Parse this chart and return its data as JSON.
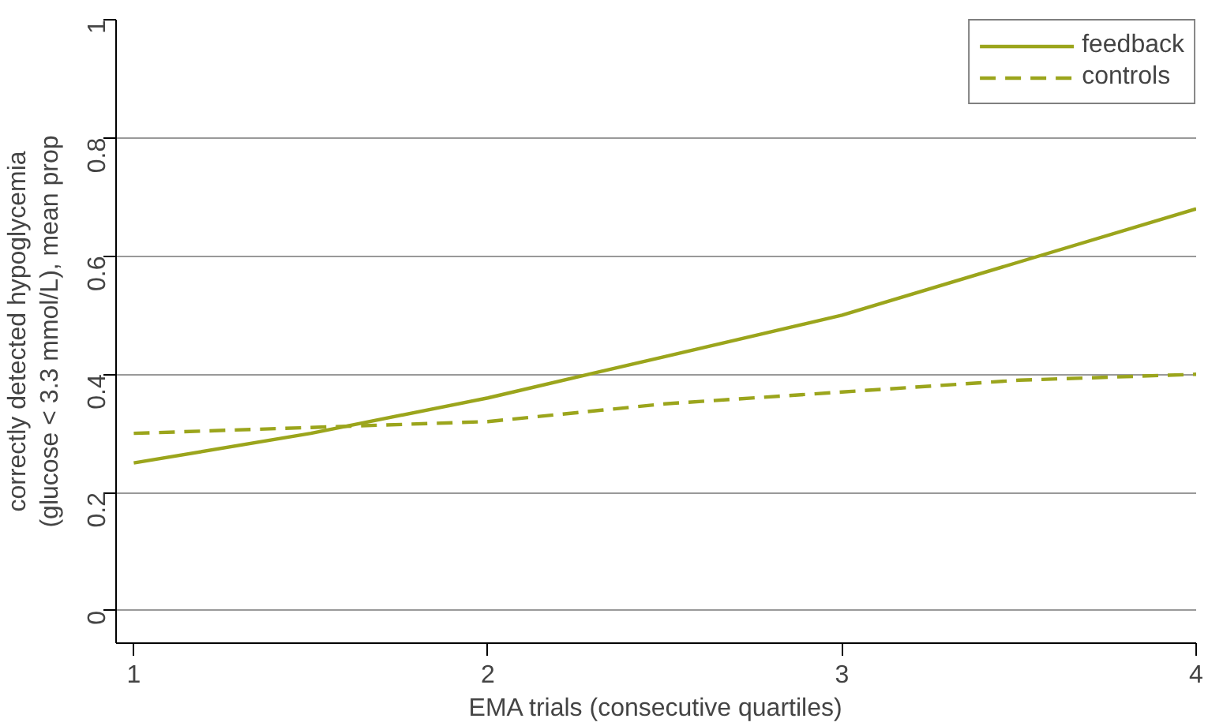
{
  "chart_data": {
    "type": "line",
    "xlabel": "EMA trials (consecutive quartiles)",
    "ylabel": "correctly detected hypoglycemia\n(glucose < 3.3 mmol/L), mean prop",
    "x": [
      1,
      1.5,
      2,
      2.5,
      3,
      3.5,
      4
    ],
    "series": [
      {
        "name": "feedback",
        "color": "#9ba51c",
        "line_style": "solid",
        "values": [
          0.25,
          0.3,
          0.36,
          0.43,
          0.5,
          0.59,
          0.68
        ]
      },
      {
        "name": "controls",
        "color": "#9ba51c",
        "line_style": "dashed",
        "values": [
          0.3,
          0.31,
          0.32,
          0.35,
          0.37,
          0.39,
          0.4
        ]
      }
    ],
    "xlim": [
      0.95,
      4
    ],
    "ylim": [
      -0.055,
      1
    ],
    "xticks": [
      1,
      2,
      3,
      4
    ],
    "yticks": [
      0,
      0.2,
      0.4,
      0.6,
      0.8,
      1
    ],
    "grid": "y",
    "legend": "top right",
    "marker": "none"
  }
}
